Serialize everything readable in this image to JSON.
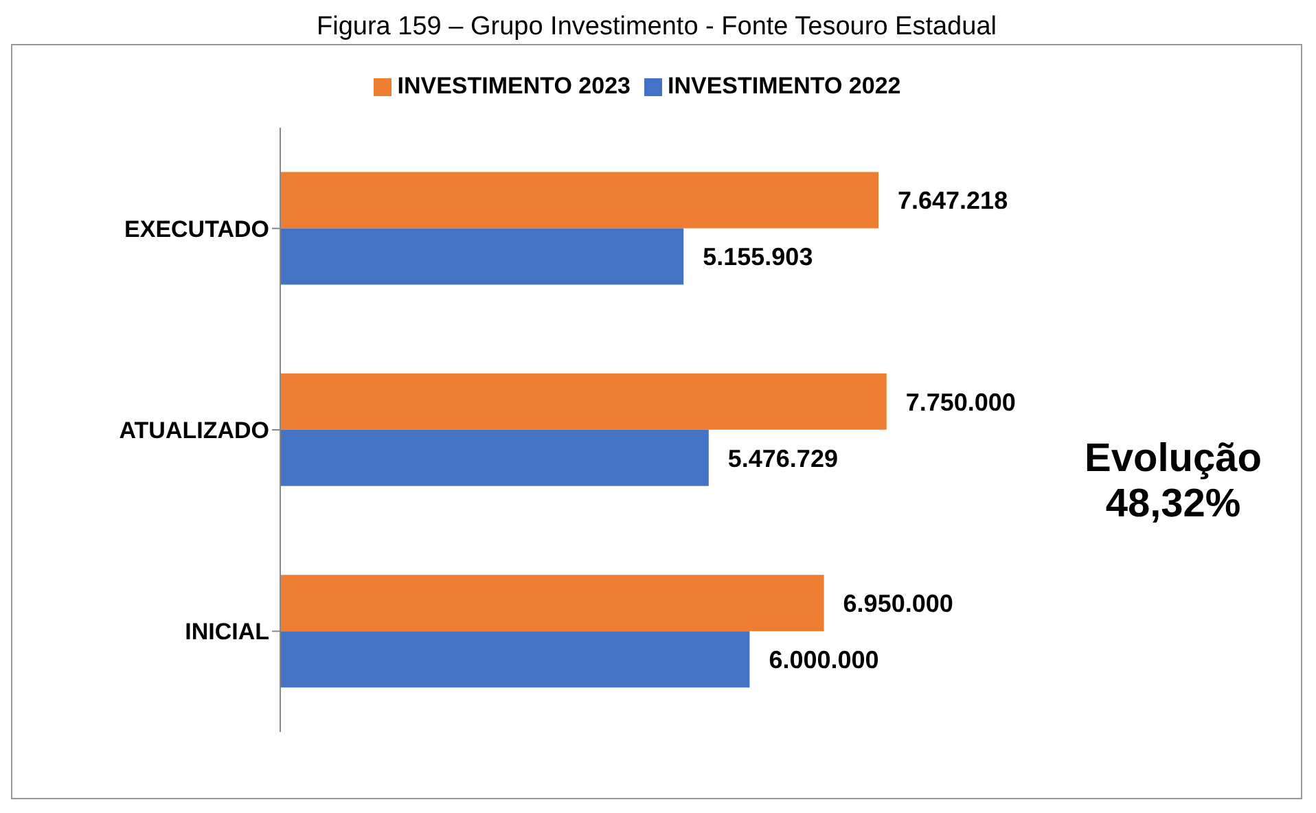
{
  "chart_data": {
    "type": "bar",
    "orientation": "horizontal",
    "title": "Figura 159 – Grupo Investimento - Fonte Tesouro Estadual",
    "categories": [
      "EXECUTADO",
      "ATUALIZADO",
      "INICIAL"
    ],
    "series": [
      {
        "name": "INVESTIMENTO 2023",
        "color": "#ed7d31",
        "values": [
          7647218,
          7750000,
          6950000
        ],
        "value_labels": [
          "7.647.218",
          "7.750.000",
          "6.950.000"
        ]
      },
      {
        "name": "INVESTIMENTO 2022",
        "color": "#4472c4",
        "values": [
          5155903,
          5476729,
          6000000
        ],
        "value_labels": [
          "5.155.903",
          "5.476.729",
          "6.000.000"
        ]
      }
    ],
    "legend": "top",
    "grid": false,
    "annotations": [
      "Evolução\n48,32%"
    ]
  }
}
